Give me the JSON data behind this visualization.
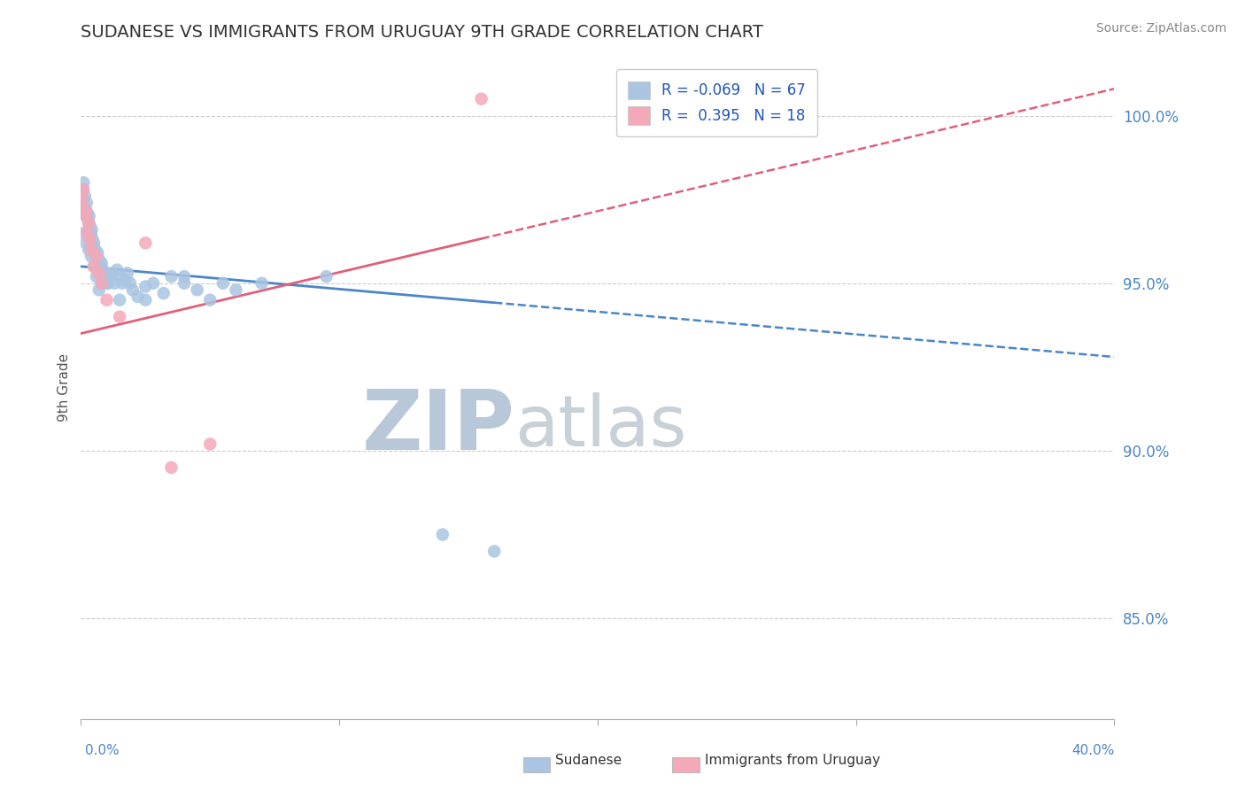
{
  "title": "SUDANESE VS IMMIGRANTS FROM URUGUAY 9TH GRADE CORRELATION CHART",
  "source": "Source: ZipAtlas.com",
  "ylabel": "9th Grade",
  "xmin": 0.0,
  "xmax": 40.0,
  "ymin": 82.0,
  "ymax": 101.8,
  "yticks": [
    85.0,
    90.0,
    95.0,
    100.0
  ],
  "ytick_labels": [
    "85.0%",
    "90.0%",
    "95.0%",
    "100.0%"
  ],
  "r_blue": -0.069,
  "n_blue": 67,
  "r_pink": 0.395,
  "n_pink": 18,
  "blue_color": "#aac5e2",
  "pink_color": "#f4a8b8",
  "blue_line_color": "#4a86c8",
  "pink_line_color": "#e0607a",
  "watermark_color": "#ccd8e8",
  "background_color": "#ffffff",
  "blue_line_x0": 0.0,
  "blue_line_y0": 95.5,
  "blue_line_x1": 40.0,
  "blue_line_y1": 92.8,
  "blue_solid_end_x": 16.0,
  "pink_line_x0": 0.0,
  "pink_line_y0": 93.5,
  "pink_line_x1": 40.0,
  "pink_line_y1": 100.8,
  "pink_solid_end_x": 15.5,
  "blue_scatter_x": [
    0.05,
    0.08,
    0.1,
    0.12,
    0.15,
    0.18,
    0.2,
    0.22,
    0.25,
    0.28,
    0.3,
    0.32,
    0.35,
    0.38,
    0.4,
    0.42,
    0.45,
    0.48,
    0.5,
    0.55,
    0.6,
    0.65,
    0.7,
    0.75,
    0.8,
    0.85,
    0.9,
    0.95,
    1.0,
    1.05,
    1.1,
    1.2,
    1.3,
    1.4,
    1.5,
    1.6,
    1.7,
    1.8,
    1.9,
    2.0,
    2.2,
    2.5,
    2.8,
    3.2,
    3.5,
    4.0,
    4.5,
    5.0,
    5.5,
    6.0,
    0.1,
    0.2,
    0.3,
    0.4,
    0.5,
    0.6,
    0.7,
    0.8,
    0.9,
    1.0,
    1.5,
    2.5,
    4.0,
    7.0,
    9.5,
    14.0,
    16.0
  ],
  "blue_scatter_y": [
    97.8,
    97.5,
    98.0,
    97.3,
    97.6,
    97.2,
    97.0,
    97.4,
    97.1,
    96.9,
    96.8,
    97.0,
    96.7,
    96.5,
    96.4,
    96.6,
    96.3,
    96.1,
    96.2,
    96.0,
    95.8,
    95.9,
    95.7,
    95.5,
    95.6,
    95.4,
    95.2,
    95.3,
    95.1,
    95.0,
    95.2,
    95.3,
    95.0,
    95.4,
    95.2,
    95.0,
    95.1,
    95.3,
    95.0,
    94.8,
    94.6,
    94.9,
    95.0,
    94.7,
    95.2,
    95.0,
    94.8,
    94.5,
    95.0,
    94.8,
    96.5,
    96.2,
    96.0,
    95.8,
    95.5,
    95.2,
    94.8,
    95.0,
    95.2,
    95.0,
    94.5,
    94.5,
    95.2,
    95.0,
    95.2,
    87.5,
    87.0
  ],
  "pink_scatter_x": [
    0.05,
    0.1,
    0.15,
    0.2,
    0.25,
    0.3,
    0.35,
    0.4,
    0.5,
    0.6,
    0.7,
    0.8,
    1.0,
    1.5,
    2.5,
    3.5,
    5.0,
    15.5
  ],
  "pink_scatter_y": [
    97.5,
    97.8,
    97.2,
    97.0,
    96.5,
    96.8,
    96.3,
    96.0,
    95.5,
    95.8,
    95.3,
    95.0,
    94.5,
    94.0,
    96.2,
    89.5,
    90.2,
    100.5
  ]
}
